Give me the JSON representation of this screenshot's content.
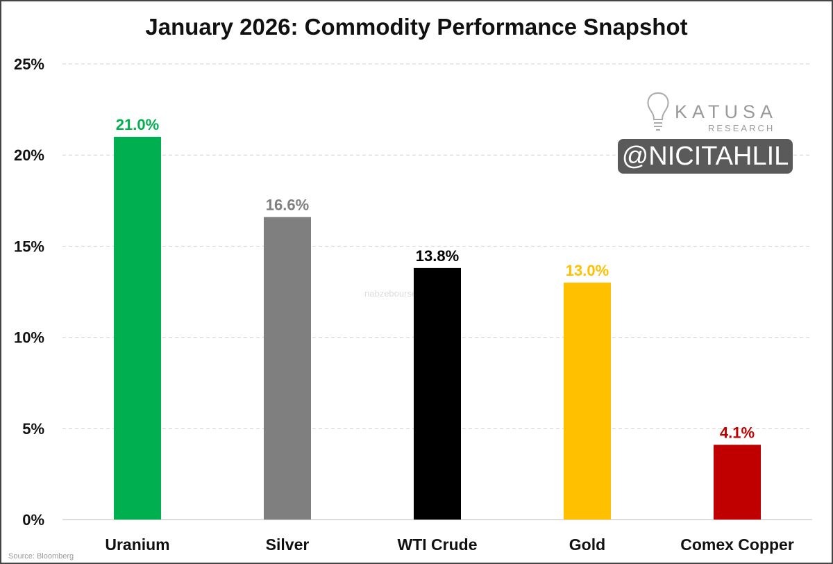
{
  "chart_data": {
    "type": "bar",
    "title": "January 2026: Commodity Performance Snapshot",
    "categories": [
      "Uranium",
      "Silver",
      "WTI Crude",
      "Gold",
      "Comex Copper"
    ],
    "values": [
      21.0,
      16.6,
      13.8,
      13.0,
      4.1
    ],
    "data_labels": [
      "21.0%",
      "16.6%",
      "13.8%",
      "13.0%",
      "4.1%"
    ],
    "colors": [
      "#00b050",
      "#7f7f7f",
      "#000000",
      "#ffc000",
      "#c00000"
    ],
    "label_colors": [
      "#00b050",
      "#7f7f7f",
      "#000000",
      "#ffc000",
      "#c00000"
    ],
    "ylim": [
      0,
      25
    ],
    "yticks": [
      0,
      5,
      10,
      15,
      20,
      25
    ],
    "ytick_labels": [
      "0%",
      "5%",
      "10%",
      "15%",
      "20%",
      "25%"
    ],
    "grid": true,
    "xlabel": "",
    "ylabel": ""
  },
  "logo": {
    "name": "KATUSA",
    "sub": "RESEARCH"
  },
  "handle": "@NICITAHLIL",
  "source": "Source: Bloomberg",
  "watermark": "nabzebourse"
}
